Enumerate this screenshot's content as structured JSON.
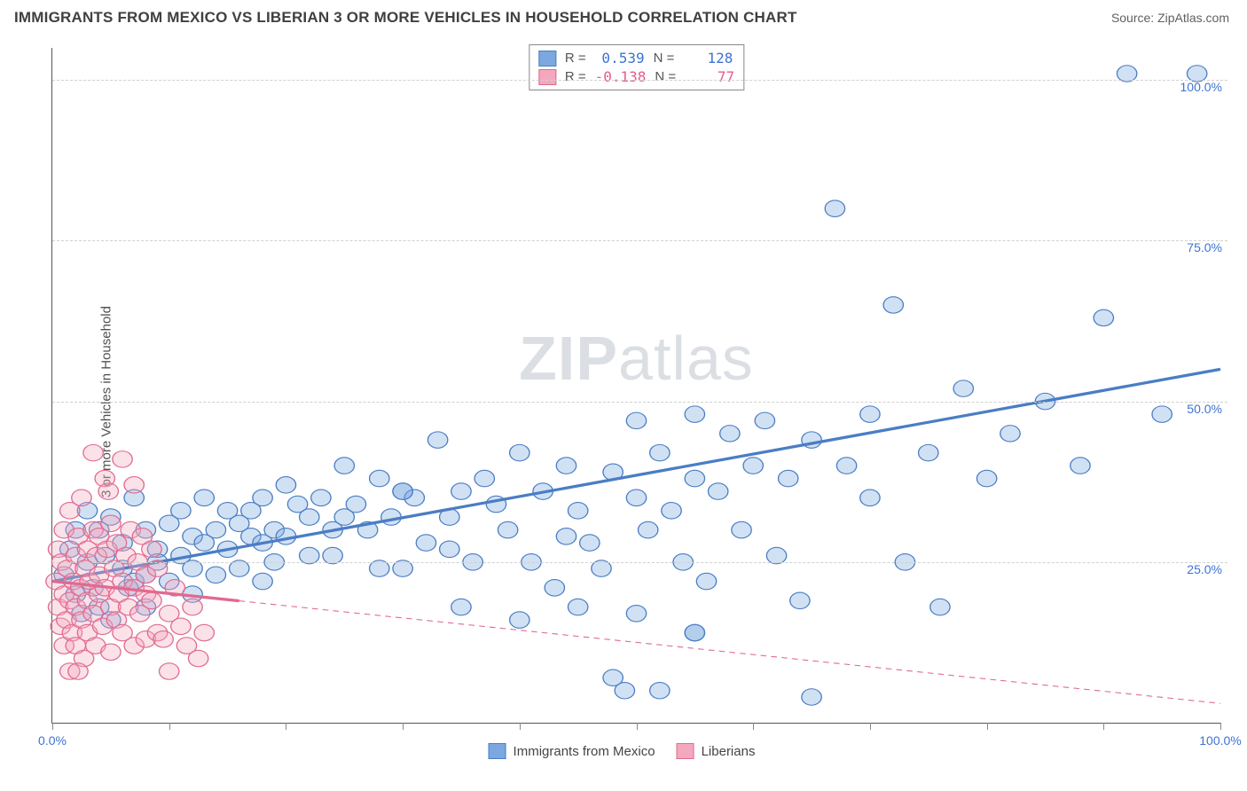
{
  "header": {
    "title": "IMMIGRANTS FROM MEXICO VS LIBERIAN 3 OR MORE VEHICLES IN HOUSEHOLD CORRELATION CHART",
    "source_prefix": "Source: ",
    "source_name": "ZipAtlas.com"
  },
  "chart": {
    "type": "scatter",
    "ylabel": "3 or more Vehicles in Household",
    "watermark": "ZIPatlas",
    "xlim": [
      0,
      100
    ],
    "ylim": [
      0,
      105
    ],
    "xtick_positions": [
      0,
      10,
      20,
      30,
      40,
      50,
      60,
      70,
      80,
      90,
      100
    ],
    "xtick_labels": {
      "0": "0.0%",
      "100": "100.0%"
    },
    "ytick_positions": [
      25,
      50,
      75,
      100
    ],
    "ytick_labels": [
      "25.0%",
      "50.0%",
      "75.0%",
      "100.0%"
    ],
    "grid_color": "#d0d0d0",
    "background_color": "#ffffff",
    "series": [
      {
        "name": "Immigrants from Mexico",
        "color_fill": "#7ba8e0",
        "color_stroke": "#4a7dc4",
        "label_color": "#3d74d1",
        "R": "0.539",
        "N": "128",
        "trend": {
          "x1": 0,
          "y1": 22,
          "x2": 100,
          "y2": 55,
          "solid_until": 100
        },
        "points": [
          [
            1,
            23
          ],
          [
            1.5,
            27
          ],
          [
            2,
            20
          ],
          [
            2,
            30
          ],
          [
            2.5,
            17
          ],
          [
            3,
            25
          ],
          [
            3,
            33
          ],
          [
            3.5,
            21
          ],
          [
            4,
            18
          ],
          [
            4,
            30
          ],
          [
            4.5,
            26
          ],
          [
            5,
            16
          ],
          [
            5,
            32
          ],
          [
            6,
            24
          ],
          [
            6,
            28
          ],
          [
            6.5,
            21
          ],
          [
            7,
            35
          ],
          [
            7,
            22
          ],
          [
            8,
            18
          ],
          [
            8,
            30
          ],
          [
            9,
            27
          ],
          [
            9,
            25
          ],
          [
            10,
            31
          ],
          [
            10,
            22
          ],
          [
            11,
            33
          ],
          [
            11,
            26
          ],
          [
            12,
            29
          ],
          [
            12,
            24
          ],
          [
            13,
            35
          ],
          [
            13,
            28
          ],
          [
            14,
            30
          ],
          [
            14,
            23
          ],
          [
            15,
            33
          ],
          [
            15,
            27
          ],
          [
            16,
            31
          ],
          [
            16,
            24
          ],
          [
            17,
            29
          ],
          [
            17,
            33
          ],
          [
            18,
            35
          ],
          [
            18,
            28
          ],
          [
            19,
            30
          ],
          [
            19,
            25
          ],
          [
            20,
            37
          ],
          [
            20,
            29
          ],
          [
            21,
            34
          ],
          [
            22,
            32
          ],
          [
            22,
            26
          ],
          [
            23,
            35
          ],
          [
            24,
            30
          ],
          [
            25,
            40
          ],
          [
            25,
            32
          ],
          [
            26,
            34
          ],
          [
            27,
            30
          ],
          [
            28,
            38
          ],
          [
            29,
            32
          ],
          [
            30,
            24
          ],
          [
            30,
            36
          ],
          [
            31,
            35
          ],
          [
            32,
            28
          ],
          [
            33,
            44
          ],
          [
            34,
            32
          ],
          [
            35,
            36
          ],
          [
            36,
            25
          ],
          [
            37,
            38
          ],
          [
            38,
            34
          ],
          [
            39,
            30
          ],
          [
            40,
            42
          ],
          [
            41,
            25
          ],
          [
            42,
            36
          ],
          [
            43,
            21
          ],
          [
            44,
            40
          ],
          [
            45,
            33
          ],
          [
            46,
            28
          ],
          [
            47,
            24
          ],
          [
            48,
            39
          ],
          [
            49,
            5
          ],
          [
            50,
            35
          ],
          [
            50,
            47
          ],
          [
            51,
            30
          ],
          [
            52,
            42
          ],
          [
            53,
            33
          ],
          [
            54,
            25
          ],
          [
            55,
            48
          ],
          [
            55,
            38
          ],
          [
            56,
            22
          ],
          [
            57,
            36
          ],
          [
            58,
            45
          ],
          [
            59,
            30
          ],
          [
            60,
            40
          ],
          [
            61,
            47
          ],
          [
            62,
            26
          ],
          [
            63,
            38
          ],
          [
            64,
            19
          ],
          [
            65,
            44
          ],
          [
            65,
            4
          ],
          [
            67,
            80
          ],
          [
            68,
            40
          ],
          [
            70,
            35
          ],
          [
            70,
            48
          ],
          [
            72,
            65
          ],
          [
            73,
            25
          ],
          [
            75,
            42
          ],
          [
            76,
            18
          ],
          [
            78,
            52
          ],
          [
            80,
            38
          ],
          [
            82,
            45
          ],
          [
            85,
            50
          ],
          [
            88,
            40
          ],
          [
            90,
            63
          ],
          [
            92,
            101
          ],
          [
            95,
            48
          ],
          [
            98,
            101
          ],
          [
            35,
            18
          ],
          [
            40,
            16
          ],
          [
            45,
            18
          ],
          [
            50,
            17
          ],
          [
            55,
            14
          ],
          [
            48,
            7
          ],
          [
            52,
            5
          ],
          [
            30,
            36
          ],
          [
            8,
            23
          ],
          [
            12,
            20
          ],
          [
            18,
            22
          ],
          [
            24,
            26
          ],
          [
            34,
            27
          ],
          [
            44,
            29
          ],
          [
            55,
            14
          ],
          [
            28,
            24
          ]
        ]
      },
      {
        "name": "Liberians",
        "color_fill": "#f4a8bd",
        "color_stroke": "#e06a90",
        "label_color": "#e85a88",
        "R": "-0.138",
        "N": "77",
        "trend": {
          "x1": 0,
          "y1": 22,
          "x2": 100,
          "y2": 3,
          "solid_until": 16
        },
        "points": [
          [
            0.3,
            22
          ],
          [
            0.5,
            18
          ],
          [
            0.5,
            27
          ],
          [
            0.7,
            15
          ],
          [
            0.8,
            25
          ],
          [
            1,
            12
          ],
          [
            1,
            30
          ],
          [
            1,
            20
          ],
          [
            1.2,
            16
          ],
          [
            1.3,
            24
          ],
          [
            1.5,
            8
          ],
          [
            1.5,
            19
          ],
          [
            1.5,
            33
          ],
          [
            1.7,
            14
          ],
          [
            1.8,
            22
          ],
          [
            2,
            26
          ],
          [
            2,
            18
          ],
          [
            2,
            12
          ],
          [
            2.2,
            29
          ],
          [
            2.4,
            21
          ],
          [
            2.5,
            16
          ],
          [
            2.5,
            35
          ],
          [
            2.7,
            10
          ],
          [
            2.8,
            24
          ],
          [
            3,
            27
          ],
          [
            3,
            19
          ],
          [
            3,
            14
          ],
          [
            3.2,
            22
          ],
          [
            3.5,
            30
          ],
          [
            3.5,
            17
          ],
          [
            3.7,
            12
          ],
          [
            3.8,
            26
          ],
          [
            4,
            20
          ],
          [
            4,
            23
          ],
          [
            4,
            29
          ],
          [
            4.3,
            15
          ],
          [
            4.5,
            38
          ],
          [
            4.5,
            21
          ],
          [
            4.7,
            27
          ],
          [
            5,
            18
          ],
          [
            5,
            11
          ],
          [
            5,
            31
          ],
          [
            5.3,
            24
          ],
          [
            5.5,
            16
          ],
          [
            5.5,
            28
          ],
          [
            5.7,
            20
          ],
          [
            6,
            41
          ],
          [
            6,
            22
          ],
          [
            6,
            14
          ],
          [
            6.3,
            26
          ],
          [
            6.5,
            18
          ],
          [
            6.7,
            30
          ],
          [
            7,
            37
          ],
          [
            7,
            21
          ],
          [
            7,
            12
          ],
          [
            7.3,
            25
          ],
          [
            7.5,
            17
          ],
          [
            7.7,
            29
          ],
          [
            8,
            20
          ],
          [
            8,
            23
          ],
          [
            8,
            13
          ],
          [
            8.5,
            27
          ],
          [
            8.5,
            19
          ],
          [
            9,
            14
          ],
          [
            9,
            24
          ],
          [
            9.5,
            13
          ],
          [
            10,
            8
          ],
          [
            10,
            17
          ],
          [
            10.5,
            21
          ],
          [
            11,
            15
          ],
          [
            11.5,
            12
          ],
          [
            12,
            18
          ],
          [
            12.5,
            10
          ],
          [
            13,
            14
          ],
          [
            3.5,
            42
          ],
          [
            4.8,
            36
          ],
          [
            2.2,
            8
          ]
        ]
      }
    ],
    "bottom_legend": [
      "Immigrants from Mexico",
      "Liberians"
    ]
  }
}
